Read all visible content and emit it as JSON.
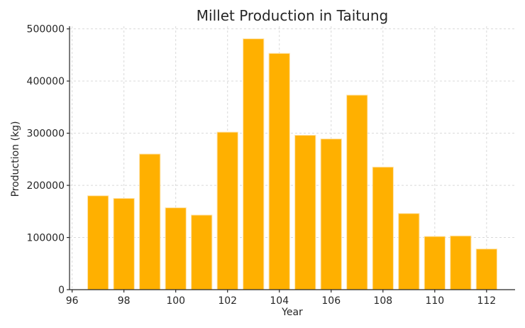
{
  "chart_data": {
    "type": "bar",
    "title": "Millet Production in Taitung",
    "xlabel": "Year",
    "ylabel": "Production (kg)",
    "x": [
      97,
      98,
      99,
      100,
      101,
      102,
      103,
      104,
      105,
      106,
      107,
      108,
      109,
      110,
      111,
      112
    ],
    "values": [
      180000,
      175000,
      260000,
      157000,
      143000,
      302000,
      481000,
      453000,
      296000,
      289000,
      373000,
      235000,
      146000,
      102000,
      103000,
      78000
    ],
    "xlim": [
      95.9,
      113.1
    ],
    "ylim": [
      0,
      505000
    ],
    "xticks": [
      96,
      98,
      100,
      102,
      104,
      106,
      108,
      110,
      112
    ],
    "yticks": [
      0,
      100000,
      200000,
      300000,
      400000,
      500000
    ],
    "bar_color": "#ffb000",
    "grid": true
  }
}
